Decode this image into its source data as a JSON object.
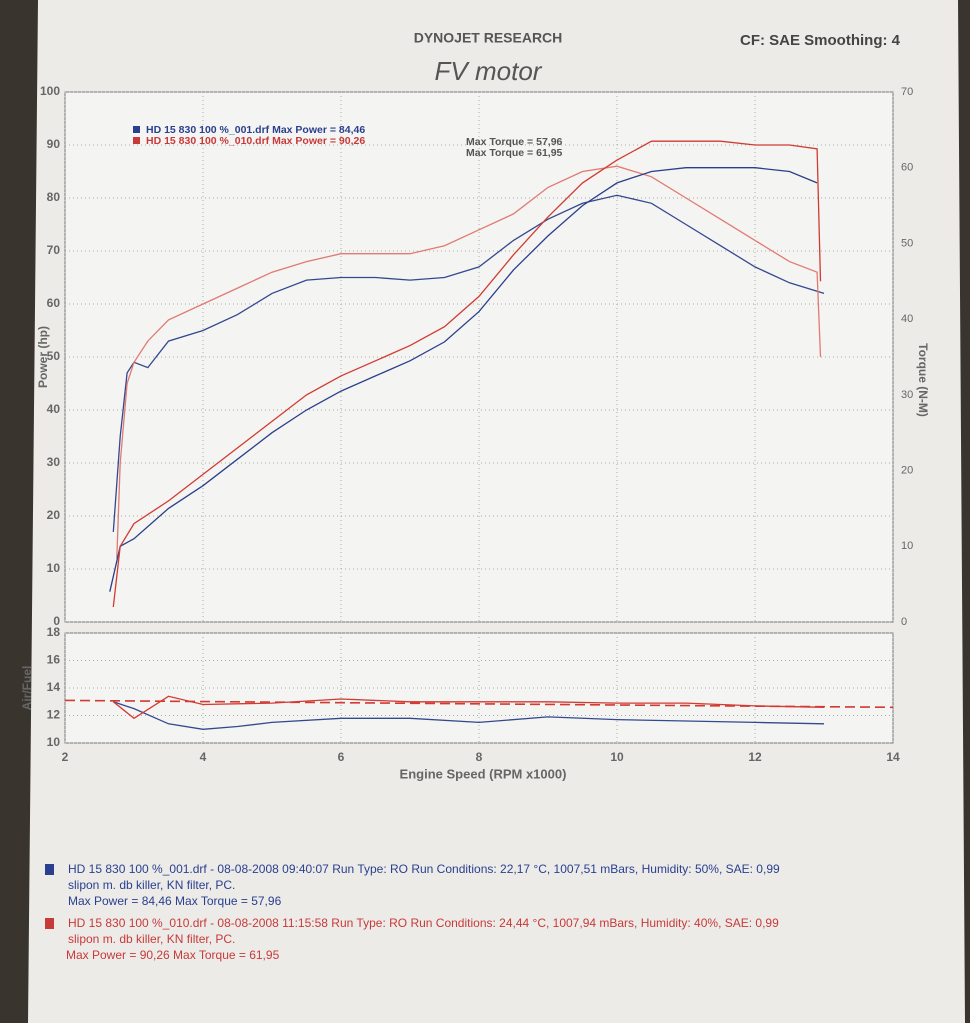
{
  "header": {
    "brand": "DYNOJET RESEARCH",
    "settings": "CF: SAE  Smoothing: 4"
  },
  "chart_data": [
    {
      "type": "line",
      "title": "FV motor",
      "ylabel": "Power (hp)",
      "y2label": "Torque (N-M)",
      "xlim": [
        2,
        14
      ],
      "xticks": [
        2,
        4,
        6,
        8,
        10,
        12,
        14
      ],
      "ylim": [
        0,
        100
      ],
      "yticks": [
        0,
        10,
        20,
        30,
        40,
        50,
        60,
        70,
        80,
        90,
        100
      ],
      "y2lim": [
        0,
        70
      ],
      "y2ticks": [
        0,
        10,
        20,
        30,
        40,
        50,
        60,
        70
      ],
      "grid": true,
      "annotations": [
        {
          "text": "HD 15 830  100 %_001.drf Max Power = 84,46",
          "extra": "Max Torque = 57,96",
          "color": "#2a3f8f"
        },
        {
          "text": "HD 15 830  100 %_010.drf Max Power = 90,26",
          "extra": "Max Torque = 61,95",
          "color": "#c83a3a"
        }
      ],
      "series": [
        {
          "color": "#34488f",
          "x": [
            2.7,
            2.8,
            2.9,
            3.0,
            3.2,
            3.5,
            4,
            4.5,
            5,
            5.5,
            6,
            6.5,
            7,
            7.5,
            8,
            8.5,
            9,
            9.5,
            10,
            10.5,
            11,
            11.5,
            12,
            12.5,
            13
          ],
          "values": [
            17,
            35,
            47,
            49,
            48,
            53,
            55,
            58,
            62,
            64.5,
            65,
            65,
            64.5,
            65,
            67,
            72,
            76,
            79,
            80.5,
            79,
            75,
            71,
            67,
            64,
            62
          ]
        },
        {
          "color": "#e07a72",
          "x": [
            2.75,
            2.8,
            2.9,
            3.0,
            3.2,
            3.5,
            4,
            4.5,
            5,
            5.5,
            6,
            6.5,
            7,
            7.5,
            8,
            8.5,
            9,
            9.5,
            10,
            10.5,
            11,
            11.5,
            12,
            12.5,
            12.9,
            12.95
          ],
          "values": [
            12,
            30,
            45,
            49,
            53,
            57,
            60,
            63,
            66,
            68,
            69.5,
            69.5,
            69.5,
            71,
            74,
            77,
            82,
            85,
            86,
            84,
            80,
            76,
            72,
            68,
            66,
            50
          ]
        },
        {
          "color": "#2c3f8a",
          "axis": "y2",
          "x": [
            2.65,
            2.8,
            3.0,
            3.5,
            4,
            4.5,
            5,
            5.5,
            6,
            6.5,
            7,
            7.5,
            8,
            8.5,
            9,
            9.5,
            10,
            10.5,
            11,
            11.5,
            12,
            12.5,
            12.9
          ],
          "values": [
            4,
            10,
            11,
            15,
            18,
            21.5,
            25,
            28,
            30.5,
            32.5,
            34.5,
            37,
            41,
            46.5,
            51,
            55,
            58,
            59.5,
            60,
            60,
            60,
            59.5,
            58
          ]
        },
        {
          "color": "#d23a32",
          "axis": "y2",
          "x": [
            2.7,
            2.8,
            3.0,
            3.5,
            4,
            4.5,
            5,
            5.5,
            6,
            6.5,
            7,
            7.5,
            8,
            8.5,
            9,
            9.5,
            10,
            10.5,
            11,
            11.5,
            12,
            12.5,
            12.9,
            12.95
          ],
          "values": [
            2,
            10,
            13,
            16,
            19.5,
            23,
            26.5,
            30,
            32.5,
            34.5,
            36.5,
            39,
            43,
            48.5,
            53.5,
            58,
            61,
            63.5,
            63.5,
            63.5,
            63,
            63,
            62.5,
            45
          ]
        }
      ]
    },
    {
      "type": "line",
      "ylabel": "Air/Fuel",
      "xlabel": "Engine Speed (RPM x1000)",
      "xlim": [
        2,
        14
      ],
      "xticks": [
        2,
        4,
        6,
        8,
        10,
        12,
        14
      ],
      "ylim": [
        10,
        18
      ],
      "yticks": [
        10,
        12,
        14,
        16,
        18
      ],
      "grid": true,
      "series": [
        {
          "color": "#34488f",
          "x": [
            2.7,
            3.0,
            3.5,
            4,
            4.5,
            5,
            6,
            7,
            8,
            9,
            10,
            11,
            12,
            13
          ],
          "values": [
            13.0,
            12.5,
            11.4,
            11.0,
            11.2,
            11.5,
            11.8,
            11.8,
            11.5,
            11.9,
            11.7,
            11.6,
            11.5,
            11.4
          ]
        },
        {
          "color": "#d23a32",
          "x": [
            2.7,
            3.0,
            3.5,
            4,
            5,
            6,
            7,
            8,
            9,
            10,
            11,
            12,
            13
          ],
          "values": [
            13.0,
            11.8,
            13.4,
            12.8,
            12.9,
            13.2,
            13.0,
            13.0,
            13.0,
            12.9,
            12.9,
            12.7,
            12.6
          ]
        },
        {
          "color": "#d23a32",
          "dashed": true,
          "x": [
            2,
            14
          ],
          "values": [
            13.1,
            12.6
          ]
        }
      ]
    }
  ],
  "notes": [
    {
      "color": "#2a3f8f",
      "lines": [
        "HD 15 830  100 %_001.drf - 08-08-2008 09:40:07  Run Type: RO  Run Conditions: 22,17 °C, 1007,51 mBars,  Humidity:  50%, SAE: 0,99",
        "slipon m. db killer, KN filter, PC.",
        "Max Power = 84,46  Max Torque = 57,96"
      ]
    },
    {
      "color": "#c83a3a",
      "lines": [
        "HD 15 830  100 %_010.drf - 08-08-2008 11:15:58  Run Type: RO  Run Conditions: 24,44 °C, 1007,94 mBars,  Humidity:  40%, SAE: 0,99",
        "slipon m. db killer, KN filter, PC.",
        "Max Power = 90,26  Max Torque = 61,95"
      ]
    }
  ]
}
